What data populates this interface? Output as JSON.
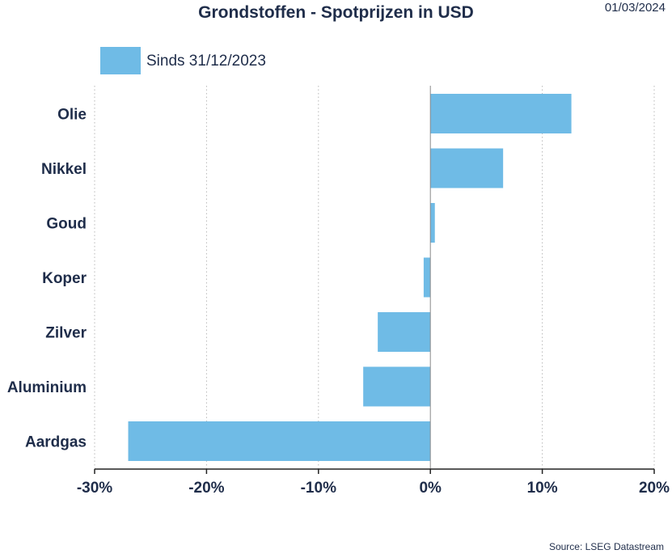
{
  "header": {
    "title": "Grondstoffen - Spotprijzen in USD",
    "date": "01/03/2024"
  },
  "footer": {
    "source": "Source: LSEG Datastream"
  },
  "colors": {
    "bar": "#6fbbe6",
    "text": "#1f2d4a",
    "grid": "#b8b8b8",
    "axis": "#222222"
  },
  "chart_data": {
    "type": "bar",
    "orientation": "horizontal",
    "categories": [
      "Olie",
      "Nikkel",
      "Goud",
      "Koper",
      "Zilver",
      "Aluminium",
      "Aardgas"
    ],
    "series": [
      {
        "name": "Sinds 31/12/2023",
        "values": [
          12.6,
          6.5,
          0.4,
          -0.6,
          -4.7,
          -6.0,
          -27.0
        ]
      }
    ],
    "xlim": [
      -30,
      20
    ],
    "xticks": [
      -30,
      -20,
      -10,
      0,
      10,
      20
    ],
    "xtick_labels": [
      "-30%",
      "-20%",
      "-10%",
      "0%",
      "10%",
      "20%"
    ],
    "grid": "vertical dotted",
    "legend": "top-left"
  }
}
